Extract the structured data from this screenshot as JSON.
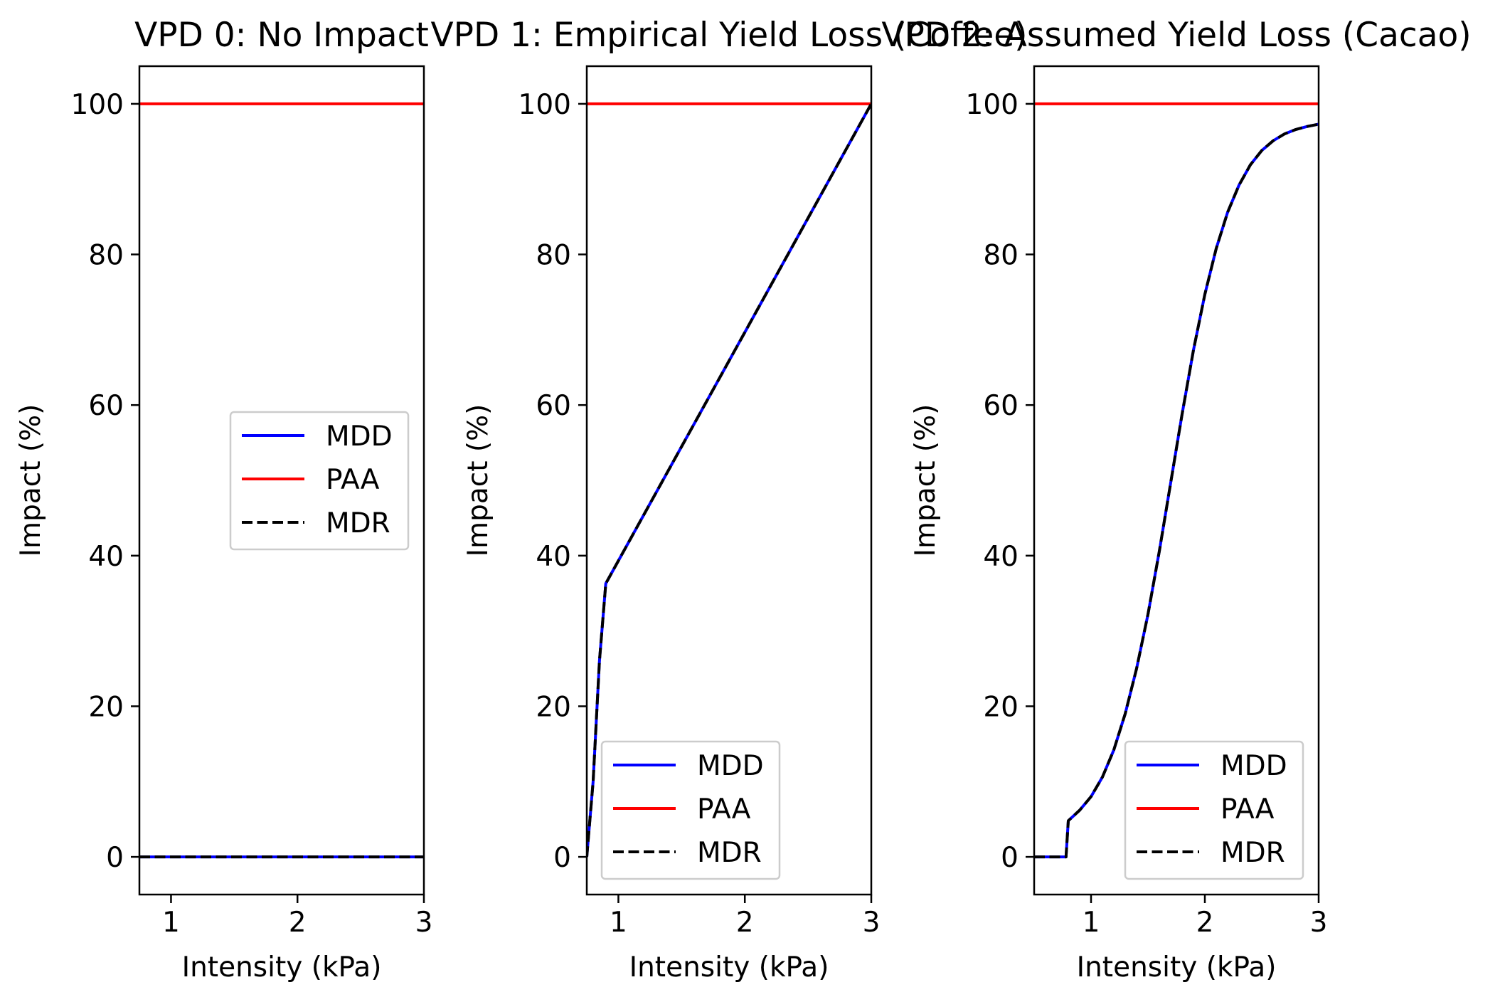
{
  "chart_data": [
    {
      "type": "line",
      "title": "VPD 0: No Impact",
      "xlabel": "Intensity (kPa)",
      "ylabel": "Impact (%)",
      "xlim": [
        0.75,
        3
      ],
      "ylim": [
        -5,
        105
      ],
      "xticks": [
        1,
        2,
        3
      ],
      "yticks": [
        0,
        20,
        40,
        60,
        80,
        100
      ],
      "legend_position": "center-right",
      "series": [
        {
          "name": "MDD",
          "color": "#0000ff",
          "style": "solid",
          "x": [
            0.75,
            3
          ],
          "y": [
            0,
            0
          ]
        },
        {
          "name": "PAA",
          "color": "#ff0000",
          "style": "solid",
          "x": [
            0.75,
            3
          ],
          "y": [
            100,
            100
          ]
        },
        {
          "name": "MDR",
          "color": "#000000",
          "style": "dashed",
          "x": [
            0.75,
            3
          ],
          "y": [
            0,
            0
          ]
        }
      ]
    },
    {
      "type": "line",
      "title": "VPD 1: Empirical Yield Loss (Coffee)",
      "xlabel": "Intensity (kPa)",
      "ylabel": "Impact (%)",
      "xlim": [
        0.75,
        3
      ],
      "ylim": [
        -5,
        105
      ],
      "xticks": [
        1,
        2,
        3
      ],
      "yticks": [
        0,
        20,
        40,
        60,
        80,
        100
      ],
      "legend_position": "lower-left",
      "series": [
        {
          "name": "MDD",
          "color": "#0000ff",
          "style": "solid",
          "x": [
            0.75,
            0.8,
            0.85,
            0.9,
            3
          ],
          "y": [
            0,
            10,
            26,
            36.3,
            100
          ]
        },
        {
          "name": "PAA",
          "color": "#ff0000",
          "style": "solid",
          "x": [
            0.75,
            3
          ],
          "y": [
            100,
            100
          ]
        },
        {
          "name": "MDR",
          "color": "#000000",
          "style": "dashed",
          "x": [
            0.75,
            0.8,
            0.85,
            0.9,
            3
          ],
          "y": [
            0,
            10,
            26,
            36.3,
            100
          ]
        }
      ]
    },
    {
      "type": "line",
      "title": "VPD 2: Assumed Yield Loss (Cacao)",
      "xlabel": "Intensity (kPa)",
      "ylabel": "Impact (%)",
      "xlim": [
        0.5,
        3
      ],
      "ylim": [
        -5,
        105
      ],
      "xticks": [
        1,
        2,
        3
      ],
      "yticks": [
        0,
        20,
        40,
        60,
        80,
        100
      ],
      "legend_position": "lower-right",
      "series": [
        {
          "name": "MDD",
          "color": "#0000ff",
          "style": "solid",
          "x": [
            0.5,
            0.78,
            0.8,
            0.9,
            1.0,
            1.1,
            1.2,
            1.3,
            1.4,
            1.5,
            1.6,
            1.7,
            1.8,
            1.9,
            2.0,
            2.1,
            2.2,
            2.3,
            2.4,
            2.5,
            2.6,
            2.7,
            2.8,
            2.9,
            3.0
          ],
          "y": [
            0,
            0,
            4.8,
            6.2,
            8.0,
            10.6,
            14.2,
            19.0,
            25.0,
            32.2,
            40.6,
            49.7,
            58.8,
            67.3,
            74.7,
            80.8,
            85.6,
            89.2,
            91.9,
            93.8,
            95.1,
            96.0,
            96.6,
            97.0,
            97.3
          ]
        },
        {
          "name": "PAA",
          "color": "#ff0000",
          "style": "solid",
          "x": [
            0.5,
            3
          ],
          "y": [
            100,
            100
          ]
        },
        {
          "name": "MDR",
          "color": "#000000",
          "style": "dashed",
          "x": [
            0.5,
            0.78,
            0.8,
            0.9,
            1.0,
            1.1,
            1.2,
            1.3,
            1.4,
            1.5,
            1.6,
            1.7,
            1.8,
            1.9,
            2.0,
            2.1,
            2.2,
            2.3,
            2.4,
            2.5,
            2.6,
            2.7,
            2.8,
            2.9,
            3.0
          ],
          "y": [
            0,
            0,
            4.8,
            6.2,
            8.0,
            10.6,
            14.2,
            19.0,
            25.0,
            32.2,
            40.6,
            49.7,
            58.8,
            67.3,
            74.7,
            80.8,
            85.6,
            89.2,
            91.9,
            93.8,
            95.1,
            96.0,
            96.6,
            97.0,
            97.3
          ]
        }
      ]
    }
  ]
}
